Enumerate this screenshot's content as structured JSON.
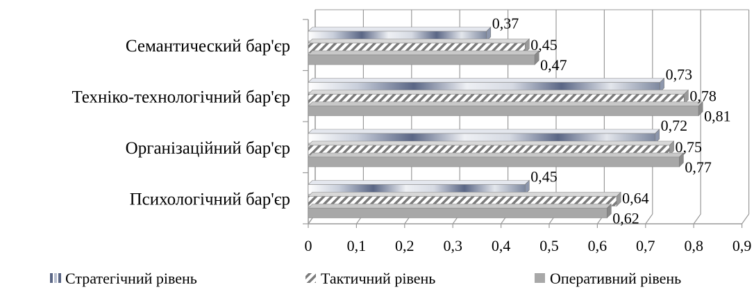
{
  "chart_data": {
    "type": "bar",
    "orientation": "horizontal",
    "style": "3d",
    "categories": [
      "Семантический  бар'єр",
      "Техніко-технологічний бар'єр",
      "Організаційний бар'єр",
      "Психологічний бар'єр"
    ],
    "series": [
      {
        "name": "Стратегічний рівень",
        "values": [
          0.37,
          0.73,
          0.72,
          0.45
        ],
        "labels": [
          "0,37",
          "0,73",
          "0,72",
          "0,45"
        ],
        "color": "#6e7a96"
      },
      {
        "name": "Тактичний рівень",
        "values": [
          0.45,
          0.78,
          0.75,
          0.64
        ],
        "labels": [
          "0,45",
          "0,78",
          "0,75",
          "0,64"
        ],
        "color": "#8c8c8c"
      },
      {
        "name": "Оперативний рівень",
        "values": [
          0.47,
          0.81,
          0.77,
          0.62
        ],
        "labels": [
          "0,47",
          "0,81",
          "0,77",
          "0,62"
        ],
        "color": "#a8a8a8"
      }
    ],
    "xlim": [
      0,
      0.9
    ],
    "xticks": [
      0,
      0.1,
      0.2,
      0.3,
      0.4,
      0.5,
      0.6,
      0.7,
      0.8,
      0.9
    ],
    "xtick_labels": [
      "0",
      "0,1",
      "0,2",
      "0,3",
      "0,4",
      "0,5",
      "0,6",
      "0,7",
      "0,8",
      "0,9"
    ],
    "grid": true,
    "legend_position": "bottom"
  }
}
